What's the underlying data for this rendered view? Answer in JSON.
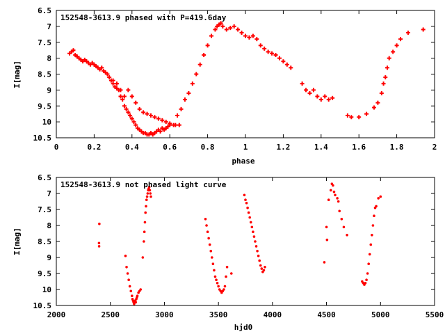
{
  "colors": {
    "points": "#ff0000",
    "axes": "#000000",
    "background": "#ffffff"
  },
  "chart_data": [
    {
      "type": "scatter",
      "title": "152548-3613.9 phased with P=419.6day",
      "xlabel": "phase",
      "ylabel": "I[mag]",
      "xlim": [
        0,
        2
      ],
      "ylim": [
        10.5,
        6.5
      ],
      "y_inverted": true,
      "grid": false,
      "marker": "plus",
      "xticks": [
        "0",
        "0.2",
        "0.4",
        "0.6",
        "0.8",
        "1",
        "1.2",
        "1.4",
        "1.6",
        "1.8",
        "2"
      ],
      "yticks": [
        "6.5",
        "7",
        "7.5",
        "8",
        "8.5",
        "9",
        "9.5",
        "10",
        "10.5"
      ],
      "series": [
        {
          "x": [
            0.07,
            0.08,
            0.09,
            0.1,
            0.11,
            0.12,
            0.13,
            0.14,
            0.15,
            0.16,
            0.17,
            0.18,
            0.19,
            0.2,
            0.21,
            0.22,
            0.23,
            0.24,
            0.25,
            0.26,
            0.27,
            0.28,
            0.29,
            0.3,
            0.31,
            0.32,
            0.33,
            0.34,
            0.35,
            0.36,
            0.37,
            0.38,
            0.39,
            0.4,
            0.41,
            0.42,
            0.43,
            0.44,
            0.45,
            0.46,
            0.47,
            0.48,
            0.49,
            0.5,
            0.51,
            0.52,
            0.53,
            0.54,
            0.55,
            0.56,
            0.57,
            0.58,
            0.59,
            0.6,
            0.62,
            0.64,
            0.66,
            0.68,
            0.7,
            0.72,
            0.74,
            0.76,
            0.78,
            0.8,
            0.82,
            0.84,
            0.85,
            0.86,
            0.87,
            0.88,
            0.9,
            0.92,
            0.94,
            0.96,
            0.98,
            1.0,
            1.02,
            1.04,
            1.06,
            1.08,
            1.1,
            1.12,
            1.14,
            1.16,
            1.18,
            1.2,
            1.22,
            1.24,
            1.3,
            1.32,
            1.34,
            1.36,
            1.38,
            1.4,
            1.42,
            1.44,
            1.46,
            1.54,
            1.56,
            1.6,
            1.64,
            1.68,
            1.7,
            1.72,
            1.73,
            1.74,
            1.75,
            1.76,
            1.78,
            1.8,
            1.82,
            1.86,
            1.94,
            0.38,
            0.4,
            0.42,
            0.44,
            0.46,
            0.48,
            0.5,
            0.52,
            0.54,
            0.56,
            0.58,
            0.6,
            0.63,
            0.65,
            0.3,
            0.32,
            0.34,
            0.36
          ],
          "y": [
            7.85,
            7.8,
            7.75,
            7.9,
            7.95,
            8.0,
            8.05,
            8.1,
            8.05,
            8.1,
            8.15,
            8.2,
            8.15,
            8.2,
            8.25,
            8.3,
            8.35,
            8.3,
            8.4,
            8.45,
            8.5,
            8.6,
            8.7,
            8.8,
            8.9,
            8.95,
            9.0,
            9.2,
            9.3,
            9.5,
            9.6,
            9.7,
            9.8,
            9.9,
            10.0,
            10.1,
            10.2,
            10.25,
            10.3,
            10.35,
            10.35,
            10.4,
            10.4,
            10.35,
            10.4,
            10.35,
            10.3,
            10.25,
            10.3,
            10.2,
            10.25,
            10.2,
            10.15,
            10.1,
            10.1,
            9.8,
            9.6,
            9.3,
            9.1,
            8.8,
            8.5,
            8.2,
            7.9,
            7.6,
            7.3,
            7.1,
            7.0,
            6.95,
            6.9,
            7.0,
            7.1,
            7.05,
            7.0,
            7.1,
            7.2,
            7.3,
            7.35,
            7.3,
            7.4,
            7.6,
            7.7,
            7.8,
            7.85,
            7.9,
            8.0,
            8.1,
            8.2,
            8.3,
            8.8,
            9.0,
            9.1,
            9.0,
            9.2,
            9.3,
            9.2,
            9.3,
            9.25,
            9.8,
            9.85,
            9.85,
            9.75,
            9.55,
            9.4,
            9.1,
            8.8,
            8.6,
            8.3,
            8.0,
            7.8,
            7.6,
            7.4,
            7.2,
            7.1,
            9.0,
            9.2,
            9.4,
            9.6,
            9.7,
            9.75,
            9.8,
            9.85,
            9.9,
            9.95,
            10.0,
            10.05,
            10.1,
            10.1,
            8.7,
            8.8,
            9.0,
            9.2
          ]
        }
      ]
    },
    {
      "type": "scatter",
      "title": "152548-3613.9 not phased light curve",
      "xlabel": "hjd0",
      "ylabel": "I[mag]",
      "xlim": [
        2000,
        5500
      ],
      "ylim": [
        10.5,
        6.5
      ],
      "y_inverted": true,
      "grid": false,
      "marker": "dot",
      "xticks": [
        "2000",
        "2500",
        "3000",
        "3500",
        "4000",
        "4500",
        "5000",
        "5500"
      ],
      "yticks": [
        "6.5",
        "7",
        "7.5",
        "8",
        "8.5",
        "9",
        "9.5",
        "10",
        "10.5"
      ],
      "series": [
        {
          "x": [
            2395,
            2396,
            2398,
            2640,
            2650,
            2660,
            2670,
            2680,
            2690,
            2700,
            2705,
            2710,
            2715,
            2720,
            2725,
            2730,
            2735,
            2740,
            2745,
            2750,
            2760,
            2770,
            2780,
            2800,
            2810,
            2815,
            2820,
            2825,
            2830,
            2835,
            2840,
            2845,
            2850,
            2855,
            2860,
            2865,
            2870,
            2875,
            3380,
            3390,
            3400,
            3410,
            3420,
            3430,
            3440,
            3450,
            3460,
            3470,
            3480,
            3490,
            3500,
            3510,
            3520,
            3530,
            3540,
            3550,
            3560,
            3570,
            3580,
            3620,
            3740,
            3750,
            3760,
            3770,
            3780,
            3790,
            3800,
            3810,
            3820,
            3830,
            3840,
            3850,
            3860,
            3870,
            3880,
            3890,
            3900,
            3910,
            3920,
            3930,
            4480,
            4500,
            4505,
            4520,
            4540,
            4550,
            4560,
            4570,
            4580,
            4600,
            4610,
            4620,
            4640,
            4660,
            4690,
            4830,
            4840,
            4850,
            4860,
            4870,
            4880,
            4890,
            4900,
            4910,
            4920,
            4930,
            4940,
            4950,
            4960,
            4980,
            5000
          ],
          "y": [
            8.55,
            8.65,
            7.95,
            8.95,
            9.3,
            9.5,
            9.7,
            9.9,
            10.05,
            10.2,
            10.3,
            10.35,
            10.4,
            10.45,
            10.4,
            10.35,
            10.4,
            10.3,
            10.25,
            10.2,
            10.1,
            10.05,
            10.0,
            9.0,
            8.5,
            8.2,
            7.9,
            7.6,
            7.4,
            7.2,
            7.1,
            7.0,
            6.9,
            6.85,
            6.8,
            6.9,
            7.0,
            7.1,
            7.8,
            8.0,
            8.2,
            8.4,
            8.6,
            8.8,
            9.0,
            9.2,
            9.4,
            9.6,
            9.7,
            9.8,
            9.9,
            10.0,
            10.05,
            10.1,
            10.05,
            10.0,
            9.9,
            9.6,
            9.3,
            9.5,
            7.05,
            7.2,
            7.3,
            7.45,
            7.6,
            7.75,
            7.9,
            8.05,
            8.2,
            8.35,
            8.5,
            8.65,
            8.8,
            8.95,
            9.1,
            9.25,
            9.35,
            9.45,
            9.4,
            9.3,
            9.15,
            8.05,
            8.45,
            7.2,
            6.9,
            6.7,
            6.75,
            6.95,
            7.05,
            7.15,
            7.25,
            7.55,
            7.8,
            8.05,
            8.3,
            9.75,
            9.8,
            9.85,
            9.8,
            9.7,
            9.5,
            9.2,
            8.9,
            8.6,
            8.3,
            8.0,
            7.7,
            7.45,
            7.4,
            7.15,
            7.1
          ]
        }
      ]
    }
  ]
}
